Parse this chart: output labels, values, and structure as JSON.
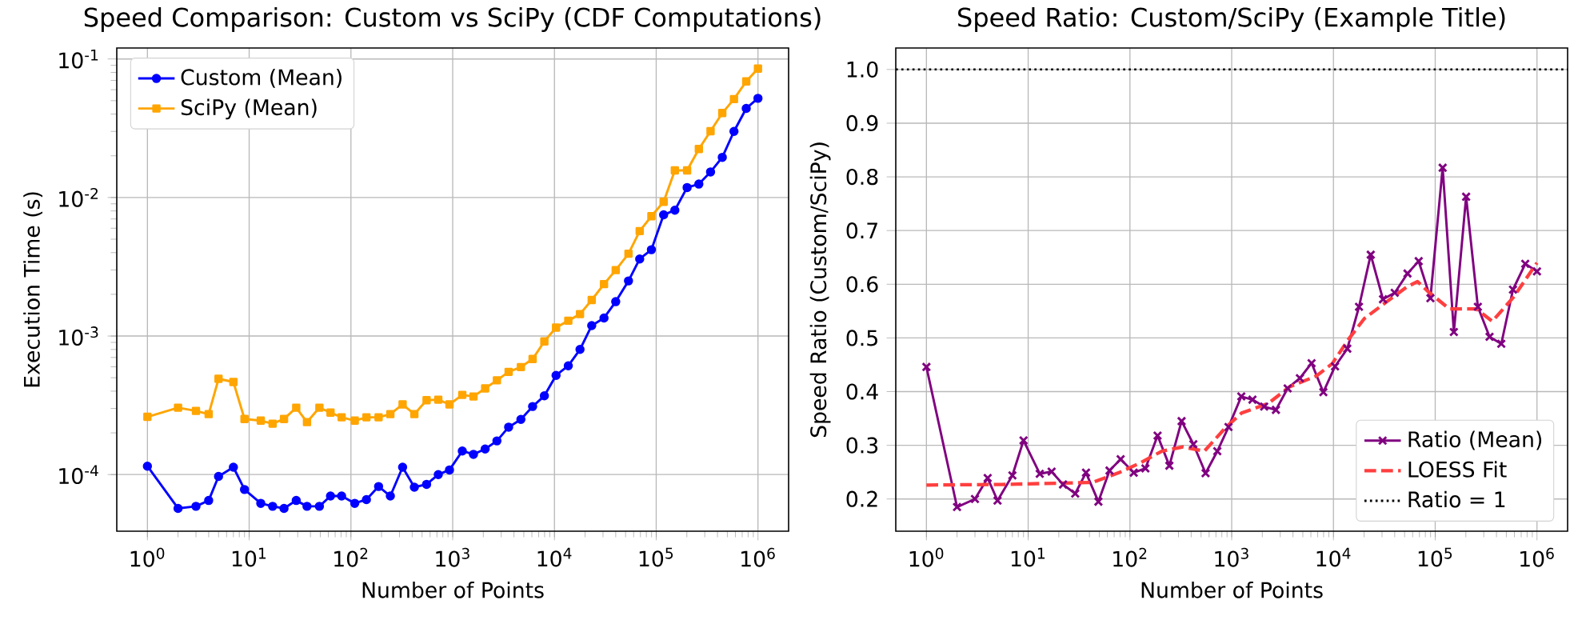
{
  "chart_data": [
    {
      "type": "line",
      "title": "Speed Comparison: Custom vs SciPy (CDF Computations)",
      "xlabel": "Number of Points",
      "ylabel": "Execution Time (s)",
      "log": "xy",
      "grid": true,
      "legend": "top left",
      "xlim": [
        0.5,
        2000000
      ],
      "ylim": [
        3.9e-05,
        0.12
      ],
      "xticks": [
        {
          "value": 1,
          "label": "10$^{0}$"
        },
        {
          "value": 10,
          "label": "10$^{1}$"
        },
        {
          "value": 100,
          "label": "10$^{2}$"
        },
        {
          "value": 1000,
          "label": "10$^{3}$"
        },
        {
          "value": 10000,
          "label": "10$^{4}$"
        },
        {
          "value": 100000,
          "label": "10$^{5}$"
        },
        {
          "value": 1000000,
          "label": "10$^{6}$"
        }
      ],
      "yticks": [
        {
          "value": 0.0001,
          "label": "10$^{-4}$"
        },
        {
          "value": 0.001,
          "label": "10$^{-3}$"
        },
        {
          "value": 0.01,
          "label": "10$^{-2}$"
        },
        {
          "value": 0.1,
          "label": "10$^{-1}$"
        }
      ],
      "x": [
        1,
        2,
        3,
        4,
        5,
        7,
        9,
        13,
        17,
        22,
        29,
        37,
        49,
        63,
        81,
        109,
        142,
        187,
        244,
        322,
        420,
        554,
        722,
        930,
        1243,
        1600,
        2085,
        2720,
        3546,
        4680,
        6100,
        7960,
        10370,
        13680,
        17830,
        23240,
        30680,
        40000,
        53400,
        68800,
        89700,
        118300,
        152500,
        201200,
        262400,
        342000,
        446000,
        581000,
        767000,
        1000000
      ],
      "series": [
        {
          "name": "Custom (Mean)",
          "color": "#0000ff",
          "marker": "circle",
          "values": [
            0.000115,
            5.7e-05,
            5.9e-05,
            6.5e-05,
            9.7e-05,
            0.000113,
            7.8e-05,
            6.2e-05,
            5.9e-05,
            5.7e-05,
            6.5e-05,
            5.9e-05,
            5.9e-05,
            7e-05,
            7e-05,
            6.2e-05,
            6.6e-05,
            8.2e-05,
            7e-05,
            0.000113,
            8.1e-05,
            8.5e-05,
            0.0001,
            0.000108,
            0.000148,
            0.00014,
            0.000153,
            0.000175,
            0.00022,
            0.00025,
            0.00031,
            0.00037,
            0.00052,
            0.00061,
            0.0008,
            0.00119,
            0.00135,
            0.00177,
            0.0025,
            0.0036,
            0.0042,
            0.0075,
            0.0081,
            0.0118,
            0.0125,
            0.0153,
            0.0195,
            0.03,
            0.044,
            0.052
          ]
        },
        {
          "name": "SciPy (Mean)",
          "color": "#ffa500",
          "marker": "square",
          "values": [
            0.000261,
            0.000304,
            0.000288,
            0.000273,
            0.000491,
            0.000466,
            0.000252,
            0.000245,
            0.000233,
            0.000252,
            0.000304,
            0.000239,
            0.000304,
            0.00028,
            0.000259,
            0.000245,
            0.000259,
            0.000259,
            0.000273,
            0.000321,
            0.000273,
            0.000344,
            0.000347,
            0.000321,
            0.000376,
            0.000366,
            0.000419,
            0.000479,
            0.000551,
            0.000597,
            0.000682,
            0.000915,
            0.00115,
            0.00129,
            0.00144,
            0.00182,
            0.00237,
            0.00299,
            0.00393,
            0.00572,
            0.00733,
            0.00931,
            0.0157,
            0.0157,
            0.0224,
            0.0301,
            0.0407,
            0.0513,
            0.0689,
            0.0852
          ]
        }
      ]
    },
    {
      "type": "line",
      "title": "Speed Ratio: Custom/SciPy (Example Title)",
      "xlabel": "Number of Points",
      "ylabel": "Speed Ratio (Custom/SciPy)",
      "log": "x",
      "grid": true,
      "legend": "bottom right",
      "xlim": [
        0.5,
        2000000
      ],
      "ylim": [
        0.14,
        1.04
      ],
      "xticks": [
        {
          "value": 1,
          "label": "10$^{0}$"
        },
        {
          "value": 10,
          "label": "10$^{1}$"
        },
        {
          "value": 100,
          "label": "10$^{2}$"
        },
        {
          "value": 1000,
          "label": "10$^{3}$"
        },
        {
          "value": 10000,
          "label": "10$^{4}$"
        },
        {
          "value": 100000,
          "label": "10$^{5}$"
        },
        {
          "value": 1000000,
          "label": "10$^{6}$"
        }
      ],
      "yticks": [
        {
          "value": 0.2,
          "label": "0.2"
        },
        {
          "value": 0.3,
          "label": "0.3"
        },
        {
          "value": 0.4,
          "label": "0.4"
        },
        {
          "value": 0.5,
          "label": "0.5"
        },
        {
          "value": 0.6,
          "label": "0.6"
        },
        {
          "value": 0.7,
          "label": "0.7"
        },
        {
          "value": 0.8,
          "label": "0.8"
        },
        {
          "value": 0.9,
          "label": "0.9"
        },
        {
          "value": 1.0,
          "label": "1.0"
        }
      ],
      "x": [
        1,
        2,
        3,
        4,
        5,
        7,
        9,
        13,
        17,
        22,
        29,
        37,
        49,
        63,
        81,
        109,
        142,
        187,
        244,
        322,
        420,
        554,
        722,
        930,
        1243,
        1600,
        2085,
        2720,
        3546,
        4680,
        6100,
        7960,
        10370,
        13680,
        17830,
        23240,
        30680,
        40000,
        53400,
        68800,
        89700,
        118300,
        152500,
        201200,
        262400,
        342000,
        446000,
        581000,
        767000,
        1000000
      ],
      "series": [
        {
          "name": "Ratio (Mean)",
          "color": "#800080",
          "marker": "cross",
          "values": [
            0.446,
            0.185,
            0.2,
            0.239,
            0.197,
            0.244,
            0.309,
            0.247,
            0.251,
            0.227,
            0.21,
            0.249,
            0.195,
            0.253,
            0.274,
            0.249,
            0.257,
            0.318,
            0.262,
            0.345,
            0.302,
            0.248,
            0.289,
            0.334,
            0.391,
            0.385,
            0.372,
            0.366,
            0.406,
            0.425,
            0.453,
            0.399,
            0.447,
            0.48,
            0.558,
            0.655,
            0.572,
            0.584,
            0.62,
            0.643,
            0.574,
            0.817,
            0.511,
            0.763,
            0.558,
            0.502,
            0.489,
            0.59,
            0.638,
            0.624
          ]
        },
        {
          "name": "LOESS Fit",
          "color": "#ff3f3f",
          "marker": "none",
          "line_style": "dashed",
          "x": [
            1,
            5.5,
            43,
            78,
            126,
            205,
            332,
            538,
            871,
            1250,
            2290,
            3710,
            6780,
            9720,
            14000,
            20100,
            32600,
            52700,
            67100,
            85500,
            138000,
            253000,
            364000,
            589000,
            1000000
          ],
          "values": [
            0.226,
            0.227,
            0.231,
            0.249,
            0.267,
            0.289,
            0.297,
            0.289,
            0.333,
            0.36,
            0.378,
            0.409,
            0.429,
            0.452,
            0.497,
            0.536,
            0.566,
            0.595,
            0.605,
            0.586,
            0.554,
            0.554,
            0.531,
            0.576,
            0.64
          ]
        }
      ],
      "ref_lines": [
        {
          "axis": "y",
          "value": 1,
          "label": "Ratio = 1",
          "color": "#000000",
          "line_style": "dotted"
        }
      ]
    }
  ]
}
